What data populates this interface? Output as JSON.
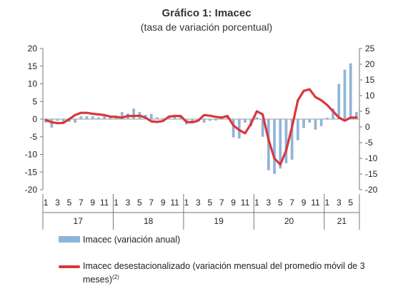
{
  "title": "Gráfico 1: Imacec",
  "subtitle": "(tasa de variación porcentual)",
  "legend": {
    "bar_label": "Imacec (variación anual)",
    "line_label_main": "Imacec desestacionalizado (variación mensual del promedio móvil de 3 meses)",
    "line_label_sup": "(2)"
  },
  "colors": {
    "bar": "#8fb4d9",
    "line": "#d9373b",
    "axis": "#777777"
  },
  "chart_data": {
    "type": "bar+line",
    "left_axis": {
      "ylim": [
        -20,
        20
      ],
      "ticks": [
        -20,
        -15,
        -10,
        -5,
        0,
        5,
        10,
        15,
        20
      ]
    },
    "right_axis": {
      "ylim": [
        -20,
        25
      ],
      "ticks": [
        -20,
        -15,
        -10,
        -5,
        0,
        5,
        10,
        15,
        20,
        25
      ]
    },
    "month_ticks": [
      "1",
      "3",
      "5",
      "7",
      "9",
      "11",
      "1",
      "3",
      "5",
      "7",
      "9",
      "11",
      "1",
      "3",
      "5",
      "7",
      "9",
      "11",
      "1",
      "3",
      "5",
      "7",
      "9",
      "11",
      "1",
      "3",
      "5"
    ],
    "years": [
      {
        "label": "17",
        "start": 0,
        "end": 12
      },
      {
        "label": "18",
        "start": 12,
        "end": 24
      },
      {
        "label": "19",
        "start": 24,
        "end": 36
      },
      {
        "label": "20",
        "start": 36,
        "end": 48
      },
      {
        "label": "21",
        "start": 48,
        "end": 54
      }
    ],
    "series": [
      {
        "name": "Imacec (variación anual)",
        "type": "bar",
        "axis": "left",
        "values": [
          -1.0,
          -2.4,
          -0.5,
          -1.0,
          -0.8,
          -1.0,
          0.8,
          0.8,
          0.8,
          0.5,
          1.0,
          0.5,
          1.0,
          2.0,
          1.6,
          3.0,
          2.0,
          1.2,
          1.5,
          0.5,
          0.3,
          0.5,
          1.0,
          0.6,
          -1.5,
          -1.0,
          -0.5,
          -1.0,
          -0.5,
          -0.4,
          0.5,
          1.0,
          -5.2,
          -5.5,
          -1.0,
          -2.0,
          0.5,
          -5.0,
          -14.5,
          -15.5,
          -14.0,
          -12.5,
          -11.5,
          -6.0,
          -2.5,
          -1.0,
          -3.0,
          -2.0,
          0.4,
          3.0,
          10.0,
          14.0,
          15.8,
          2.0
        ]
      },
      {
        "name": "Imacec desestacionalizado (variación mensual del promedio móvil de 3 meses)",
        "type": "line",
        "axis": "right",
        "values": [
          2.2,
          1.5,
          1.2,
          1.3,
          2.5,
          3.8,
          4.5,
          4.5,
          4.2,
          4.0,
          3.8,
          3.3,
          3.2,
          3.0,
          3.5,
          3.5,
          3.6,
          3.0,
          1.8,
          1.6,
          1.9,
          3.3,
          3.5,
          3.5,
          1.6,
          1.5,
          2.0,
          3.8,
          3.6,
          3.2,
          3.0,
          3.5,
          0.5,
          -1.0,
          -2.0,
          1.0,
          5.0,
          4.0,
          -4.0,
          -10.0,
          -12.0,
          -7.5,
          0.0,
          8.5,
          11.5,
          12.0,
          9.5,
          8.5,
          7.0,
          5.0,
          3.0,
          2.0,
          3.0,
          3.0
        ]
      }
    ]
  }
}
